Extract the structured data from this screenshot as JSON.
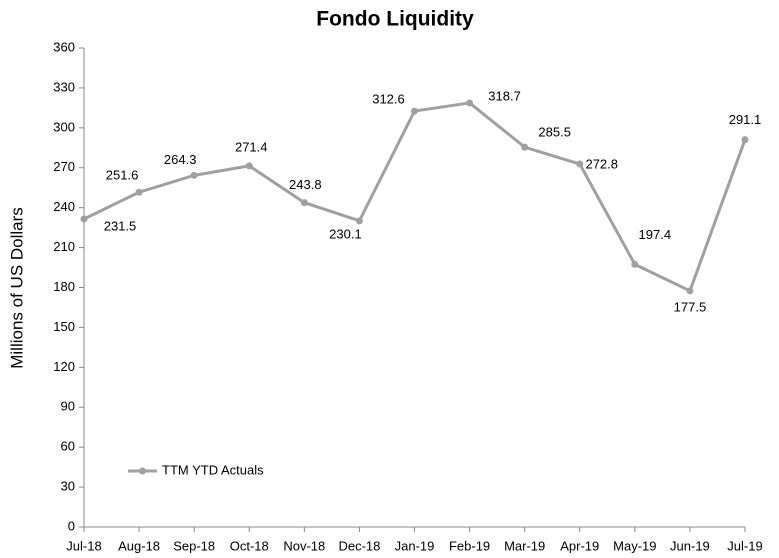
{
  "chart_data": {
    "type": "line",
    "title": "Fondo Liquidity",
    "ylabel": "Millions of US Dollars",
    "categories": [
      "Jul-18",
      "Aug-18",
      "Sep-18",
      "Oct-18",
      "Nov-18",
      "Dec-18",
      "Jan-19",
      "Feb-19",
      "Mar-19",
      "Apr-19",
      "May-19",
      "Jun-19",
      "Jul-19"
    ],
    "series": [
      {
        "name": "TTM YTD Actuals",
        "color": "#a0a0a0",
        "values": [
          231.5,
          251.6,
          264.3,
          271.4,
          243.8,
          230.1,
          312.6,
          318.7,
          285.5,
          272.8,
          197.4,
          177.5,
          291.1
        ]
      }
    ],
    "ylim": [
      0,
      360
    ],
    "yticks": [
      0,
      30,
      60,
      90,
      120,
      150,
      180,
      210,
      240,
      270,
      300,
      330,
      360
    ],
    "grid": false,
    "legend": "lower left"
  }
}
